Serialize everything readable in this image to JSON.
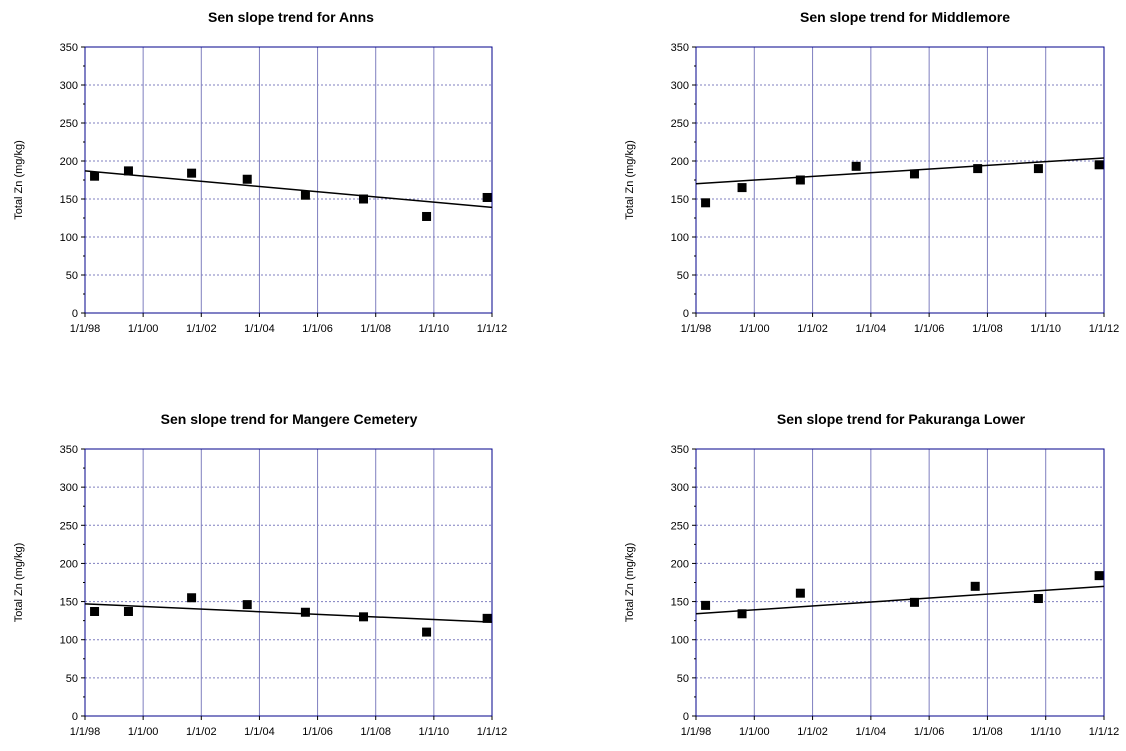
{
  "chart_data": [
    {
      "type": "scatter",
      "title": "Sen slope trend for Anns",
      "xlabel": "",
      "ylabel": "Total Zn (mg/kg)",
      "ylim": [
        0,
        350
      ],
      "yticks": [
        0,
        50,
        100,
        150,
        200,
        250,
        300,
        350
      ],
      "xlim": [
        "1998-01-01",
        "2012-01-01"
      ],
      "xticks": [
        "1/1/98",
        "1/1/00",
        "1/1/02",
        "1/1/04",
        "1/1/06",
        "1/1/08",
        "1/1/10",
        "1/1/12"
      ],
      "grid": true,
      "points": [
        {
          "x": "1998-05-01",
          "y": 180
        },
        {
          "x": "1999-07-01",
          "y": 187
        },
        {
          "x": "2001-09-01",
          "y": 184
        },
        {
          "x": "2003-08-01",
          "y": 176
        },
        {
          "x": "2005-08-01",
          "y": 155
        },
        {
          "x": "2007-08-01",
          "y": 150
        },
        {
          "x": "2009-10-01",
          "y": 127
        },
        {
          "x": "2011-11-01",
          "y": 152
        }
      ],
      "trend": [
        {
          "x": "1998-01-01",
          "y": 187
        },
        {
          "x": "2012-01-01",
          "y": 139
        }
      ]
    },
    {
      "type": "scatter",
      "title": "Sen slope trend for Middlemore",
      "xlabel": "",
      "ylabel": "Total Zn (mg/kg)",
      "ylim": [
        0,
        350
      ],
      "yticks": [
        0,
        50,
        100,
        150,
        200,
        250,
        300,
        350
      ],
      "xlim": [
        "1998-01-01",
        "2012-01-01"
      ],
      "xticks": [
        "1/1/98",
        "1/1/00",
        "1/1/02",
        "1/1/04",
        "1/1/06",
        "1/1/08",
        "1/1/10",
        "1/1/12"
      ],
      "grid": true,
      "points": [
        {
          "x": "1998-05-01",
          "y": 145
        },
        {
          "x": "1999-08-01",
          "y": 165
        },
        {
          "x": "2001-08-01",
          "y": 175
        },
        {
          "x": "2003-07-01",
          "y": 193
        },
        {
          "x": "2005-07-01",
          "y": 183
        },
        {
          "x": "2007-09-01",
          "y": 190
        },
        {
          "x": "2009-10-01",
          "y": 190
        },
        {
          "x": "2011-11-01",
          "y": 195
        }
      ],
      "trend": [
        {
          "x": "1998-01-01",
          "y": 170
        },
        {
          "x": "2012-01-01",
          "y": 204
        }
      ]
    },
    {
      "type": "scatter",
      "title": "Sen slope trend for Mangere Cemetery",
      "xlabel": "",
      "ylabel": "Total Zn (mg/kg)",
      "ylim": [
        0,
        350
      ],
      "yticks": [
        0,
        50,
        100,
        150,
        200,
        250,
        300,
        350
      ],
      "xlim": [
        "1998-01-01",
        "2012-01-01"
      ],
      "xticks": [
        "1/1/98",
        "1/1/00",
        "1/1/02",
        "1/1/04",
        "1/1/06",
        "1/1/08",
        "1/1/10",
        "1/1/12"
      ],
      "grid": true,
      "points": [
        {
          "x": "1998-05-01",
          "y": 137
        },
        {
          "x": "1999-07-01",
          "y": 137
        },
        {
          "x": "2001-09-01",
          "y": 155
        },
        {
          "x": "2003-08-01",
          "y": 146
        },
        {
          "x": "2005-08-01",
          "y": 136
        },
        {
          "x": "2007-08-01",
          "y": 130
        },
        {
          "x": "2009-10-01",
          "y": 110
        },
        {
          "x": "2011-11-01",
          "y": 128
        }
      ],
      "trend": [
        {
          "x": "1998-01-01",
          "y": 147
        },
        {
          "x": "2012-01-01",
          "y": 123
        }
      ]
    },
    {
      "type": "scatter",
      "title": "Sen slope trend for Pakuranga Lower",
      "xlabel": "",
      "ylabel": "Total Zn (mg/kg)",
      "ylim": [
        0,
        350
      ],
      "yticks": [
        0,
        50,
        100,
        150,
        200,
        250,
        300,
        350
      ],
      "xlim": [
        "1998-01-01",
        "2012-01-01"
      ],
      "xticks": [
        "1/1/98",
        "1/1/00",
        "1/1/02",
        "1/1/04",
        "1/1/06",
        "1/1/08",
        "1/1/10",
        "1/1/12"
      ],
      "grid": true,
      "points": [
        {
          "x": "1998-05-01",
          "y": 145
        },
        {
          "x": "1999-08-01",
          "y": 134
        },
        {
          "x": "2001-08-01",
          "y": 161
        },
        {
          "x": "2005-07-01",
          "y": 149
        },
        {
          "x": "2007-08-01",
          "y": 170
        },
        {
          "x": "2009-10-01",
          "y": 154
        },
        {
          "x": "2011-11-01",
          "y": 184
        }
      ],
      "trend": [
        {
          "x": "1998-01-01",
          "y": 134
        },
        {
          "x": "2012-01-01",
          "y": 170
        }
      ]
    }
  ],
  "colors": {
    "plot_border": "#00008b",
    "grid": "#7f7fbf",
    "marker": "#000000",
    "trend": "#000000",
    "text": "#000000"
  }
}
